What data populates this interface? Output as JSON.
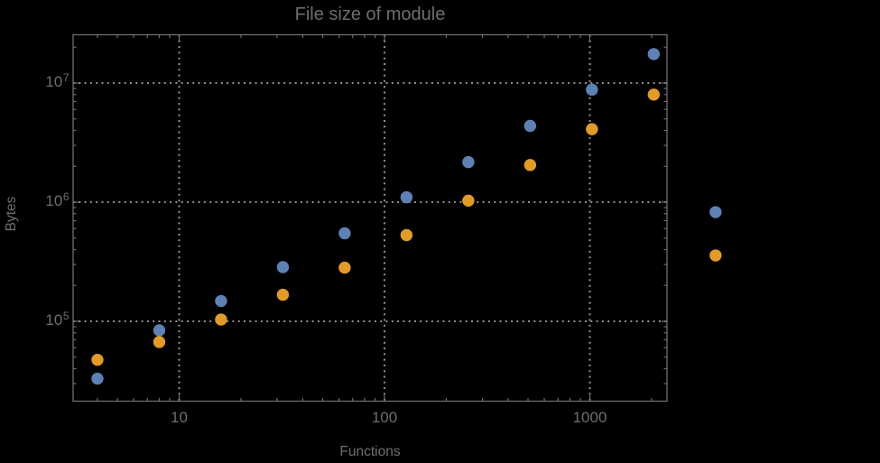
{
  "colors": {
    "background": "#000000",
    "text": "#6e6e6e",
    "frame": "#6e6e6e",
    "grid": "#8f8f8f",
    "series_blue": "#5e81b5",
    "series_orange": "#e29c25"
  },
  "chart_data": {
    "type": "scatter",
    "title": "File size of module",
    "xlabel": "Functions",
    "ylabel": "Bytes",
    "xscale": "log",
    "yscale": "log",
    "grid": true,
    "grid_style": "dotted",
    "legend": "none",
    "xlim": [
      3.05,
      2380
    ],
    "ylim": [
      21400,
      25400000
    ],
    "x_ticks": [
      10,
      100,
      1000
    ],
    "x_tick_labels": [
      "10",
      "100",
      "1000"
    ],
    "y_ticks": [
      100000,
      1000000,
      10000000
    ],
    "y_tick_labels": [
      {
        "base": "10",
        "exp": "5"
      },
      {
        "base": "10",
        "exp": "6"
      },
      {
        "base": "10",
        "exp": "7"
      }
    ],
    "x": [
      4,
      8,
      16,
      32,
      64,
      128,
      256,
      512,
      1024,
      2048,
      4096
    ],
    "series": [
      {
        "name": "series-1-blue",
        "color": "#5e81b5",
        "values": [
          33000,
          84000,
          148000,
          285000,
          548000,
          1100000,
          2170000,
          4370000,
          8800000,
          17500000,
          825000
        ]
      },
      {
        "name": "series-2-orange",
        "color": "#e29c25",
        "values": [
          47500,
          67000,
          103500,
          167000,
          282000,
          529000,
          1030000,
          2050000,
          4100000,
          8000000,
          357000
        ]
      }
    ]
  }
}
